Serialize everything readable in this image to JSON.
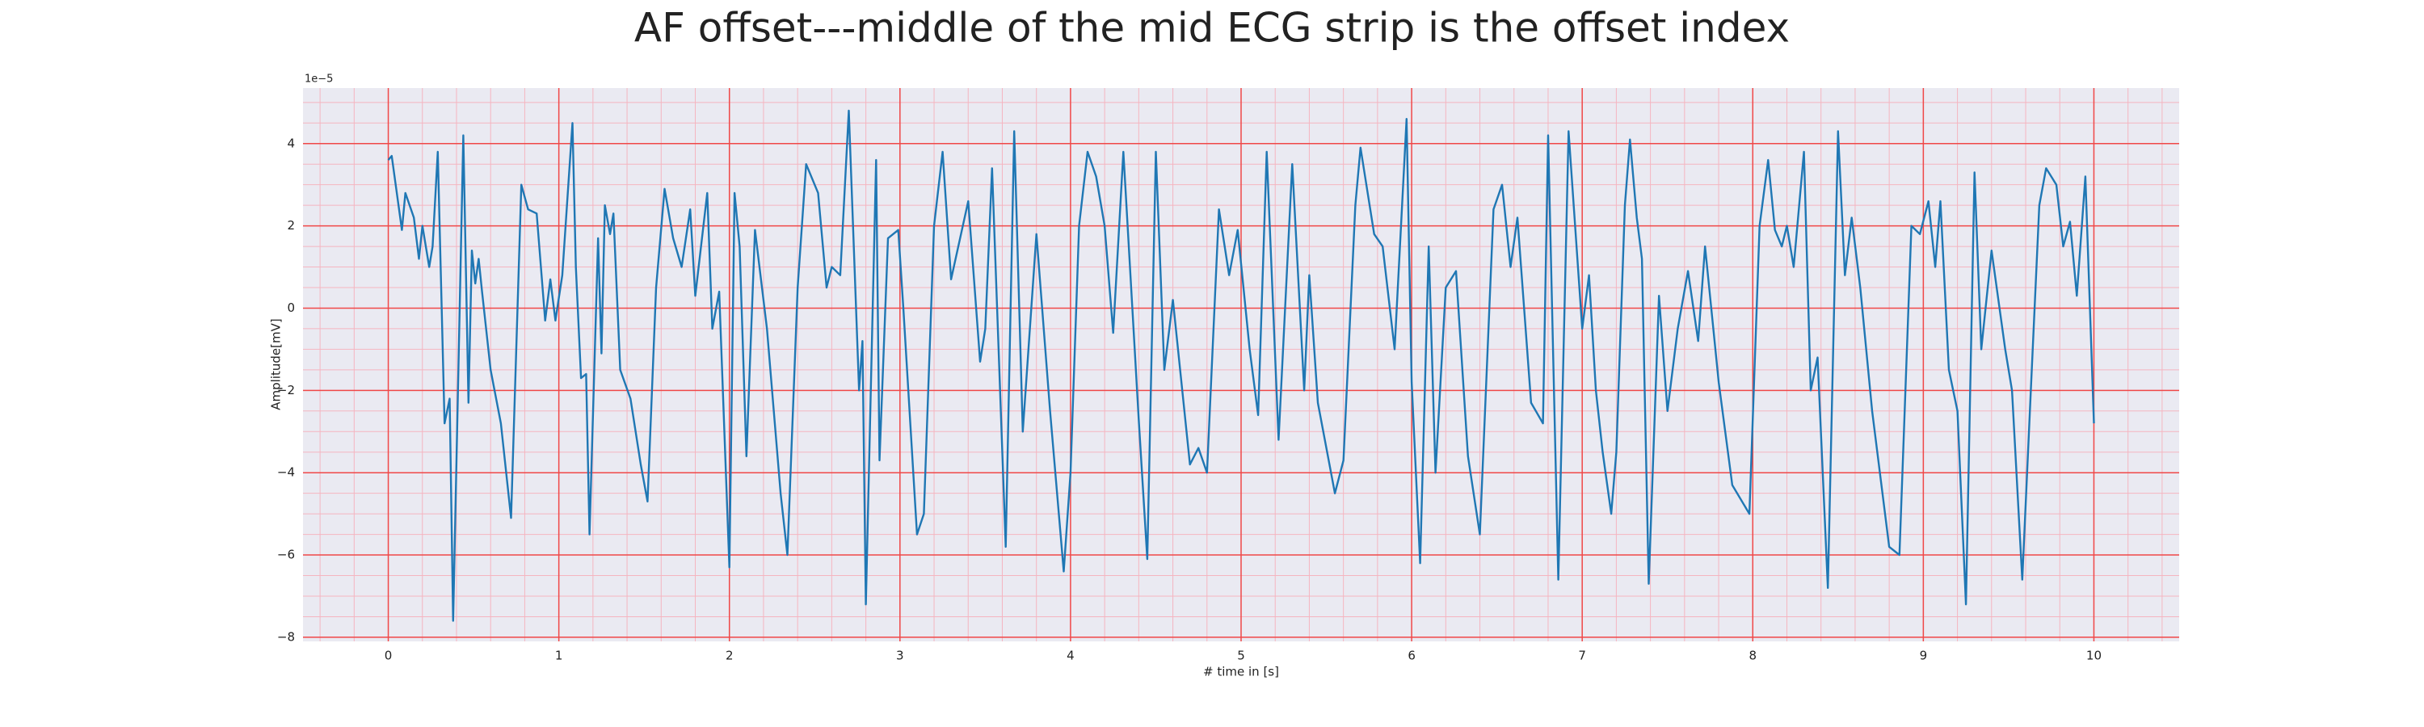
{
  "chart_data": {
    "type": "line",
    "title": "AF offset---middle of the mid ECG strip is the offset index",
    "xlabel": "# time in [s]",
    "ylabel": "Amplitude[mV]",
    "y_offset_text": "1e−5",
    "xlim": [
      -0.5,
      10.5
    ],
    "ylim": [
      -8.1,
      5.35
    ],
    "xticks": [
      0,
      1,
      2,
      3,
      4,
      5,
      6,
      7,
      8,
      9,
      10
    ],
    "yticks": [
      {
        "value": -8,
        "label": "−8"
      },
      {
        "value": -6,
        "label": "−6"
      },
      {
        "value": -4,
        "label": "−4"
      },
      {
        "value": -2,
        "label": "−2"
      },
      0,
      2,
      4
    ],
    "grid": true,
    "minor_grid": true,
    "series": [
      {
        "color": "#1f77b4",
        "x": [
          0,
          0.02,
          0.08,
          0.1,
          0.15,
          0.18,
          0.2,
          0.24,
          0.26,
          0.29,
          0.33,
          0.36,
          0.38,
          0.44,
          0.47,
          0.49,
          0.51,
          0.53,
          0.55,
          0.6,
          0.66,
          0.72,
          0.78,
          0.82,
          0.87,
          0.92,
          0.95,
          0.98,
          1.02,
          1.08,
          1.1,
          1.13,
          1.16,
          1.18,
          1.23,
          1.25,
          1.27,
          1.3,
          1.32,
          1.36,
          1.42,
          1.48,
          1.52,
          1.57,
          1.62,
          1.67,
          1.72,
          1.77,
          1.8,
          1.87,
          1.9,
          1.94,
          2.0,
          2.03,
          2.06,
          2.1,
          2.15,
          2.22,
          2.3,
          2.34,
          2.4,
          2.45,
          2.52,
          2.57,
          2.6,
          2.65,
          2.7,
          2.76,
          2.78,
          2.8,
          2.86,
          2.88,
          2.93,
          2.99,
          3.02,
          3.1,
          3.14,
          3.2,
          3.25,
          3.3,
          3.4,
          3.47,
          3.5,
          3.54,
          3.62,
          3.67,
          3.72,
          3.8,
          3.88,
          3.96,
          4.0,
          4.05,
          4.1,
          4.15,
          4.2,
          4.25,
          4.31,
          4.4,
          4.45,
          4.5,
          4.55,
          4.6,
          4.7,
          4.75,
          4.8,
          4.87,
          4.93,
          4.98,
          5.05,
          5.1,
          5.15,
          5.22,
          5.3,
          5.37,
          5.4,
          5.45,
          5.55,
          5.6,
          5.67,
          5.7,
          5.78,
          5.83,
          5.9,
          5.97,
          6.0,
          6.05,
          6.1,
          6.14,
          6.2,
          6.26,
          6.33,
          6.4,
          6.48,
          6.53,
          6.58,
          6.62,
          6.7,
          6.77,
          6.8,
          6.86,
          6.92,
          7.0,
          7.04,
          7.08,
          7.12,
          7.17,
          7.2,
          7.25,
          7.28,
          7.32,
          7.35,
          7.39,
          7.45,
          7.5,
          7.56,
          7.62,
          7.68,
          7.72,
          7.8,
          7.88,
          7.98,
          8.04,
          8.09,
          8.13,
          8.17,
          8.2,
          8.24,
          8.3,
          8.34,
          8.38,
          8.44,
          8.5,
          8.54,
          8.58,
          8.63,
          8.7,
          8.8,
          8.86,
          8.93,
          8.98,
          9.03,
          9.07,
          9.1,
          9.15,
          9.2,
          9.25,
          9.3,
          9.34,
          9.4,
          9.48,
          9.52,
          9.58,
          9.63,
          9.68,
          9.72,
          9.78,
          9.82,
          9.86,
          9.9,
          9.95,
          10
        ],
        "values": [
          3.6,
          3.7,
          1.9,
          2.8,
          2.2,
          1.2,
          2.0,
          1.0,
          1.5,
          3.8,
          -2.8,
          -2.2,
          -7.6,
          4.2,
          -2.3,
          1.4,
          0.6,
          1.2,
          0.4,
          -1.5,
          -2.8,
          -5.1,
          3.0,
          2.4,
          2.3,
          -0.3,
          0.7,
          -0.3,
          0.8,
          4.5,
          1.0,
          -1.7,
          -1.6,
          -5.5,
          1.7,
          -1.1,
          2.5,
          1.8,
          2.3,
          -1.5,
          -2.2,
          -3.8,
          -4.7,
          0.5,
          2.9,
          1.7,
          1.0,
          2.4,
          0.3,
          2.8,
          -0.5,
          0.4,
          -6.3,
          2.8,
          1.5,
          -3.6,
          1.9,
          -0.5,
          -4.5,
          -6.0,
          0.5,
          3.5,
          2.8,
          0.5,
          1.0,
          0.8,
          4.8,
          -2.0,
          -0.8,
          -7.2,
          3.6,
          -3.7,
          1.7,
          1.9,
          0,
          -5.5,
          -5.0,
          2.0,
          3.8,
          0.7,
          2.6,
          -1.3,
          -0.5,
          3.4,
          -5.8,
          4.3,
          -3.0,
          1.8,
          -2.5,
          -6.4,
          -4.0,
          2.0,
          3.8,
          3.2,
          2.0,
          -0.6,
          3.8,
          -2.7,
          -6.1,
          3.8,
          -1.5,
          0.2,
          -3.8,
          -3.4,
          -4.0,
          2.4,
          0.8,
          1.9,
          -1.0,
          -2.6,
          3.8,
          -3.2,
          3.5,
          -2.0,
          0.8,
          -2.3,
          -4.5,
          -3.7,
          2.5,
          3.9,
          1.8,
          1.5,
          -1.0,
          4.6,
          -1.8,
          -6.2,
          1.5,
          -4.0,
          0.5,
          0.9,
          -3.6,
          -5.5,
          2.4,
          3.0,
          1.0,
          2.2,
          -2.3,
          -2.8,
          4.2,
          -6.6,
          4.3,
          -0.5,
          0.8,
          -2.0,
          -3.5,
          -5.0,
          -3.5,
          2.5,
          4.1,
          2.2,
          1.2,
          -6.7,
          0.3,
          -2.5,
          -0.5,
          0.9,
          -0.8,
          1.5,
          -1.8,
          -4.3,
          -5.0,
          2.0,
          3.6,
          1.9,
          1.5,
          2.0,
          1.0,
          3.8,
          -2.0,
          -1.2,
          -6.8,
          4.3,
          0.8,
          2.2,
          0.5,
          -2.5,
          -5.8,
          -6.0,
          2.0,
          1.8,
          2.6,
          1.0,
          2.6,
          -1.5,
          -2.5,
          -7.2,
          3.3,
          -1.0,
          1.4,
          -1.0,
          -2.0,
          -6.6,
          -2.0,
          2.5,
          3.4,
          3.0,
          1.5,
          2.1,
          0.3,
          3.2,
          -2.8
        ]
      }
    ]
  }
}
